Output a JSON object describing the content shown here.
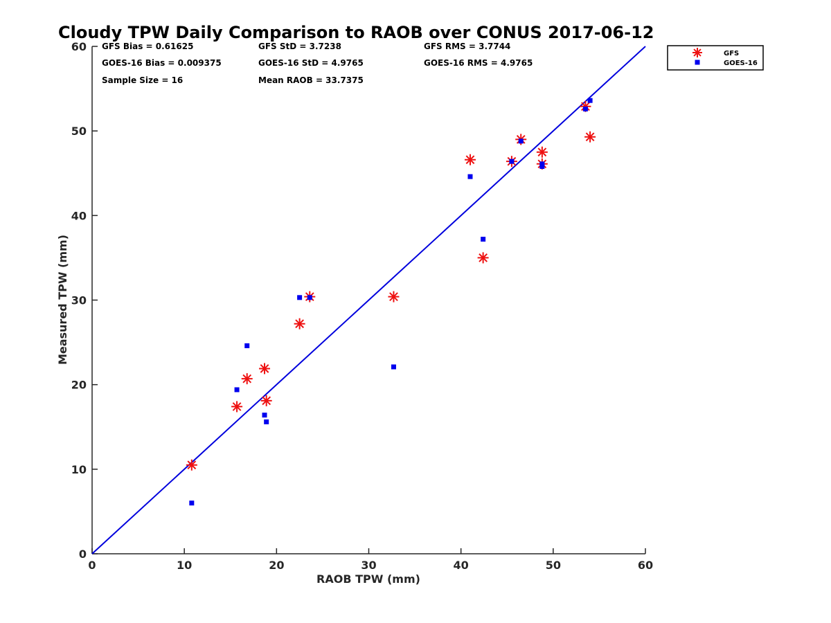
{
  "chart_data": {
    "type": "scatter",
    "title": "Cloudy TPW Daily Comparison to RAOB over CONUS 2017-06-12",
    "xlabel": "RAOB TPW (mm)",
    "ylabel": "Measured TPW (mm)",
    "xlim": [
      0,
      60
    ],
    "ylim": [
      0,
      60
    ],
    "xticks": [
      "0",
      "10",
      "20",
      "30",
      "40",
      "50",
      "60"
    ],
    "yticks": [
      "0",
      "10",
      "20",
      "30",
      "40",
      "50",
      "60"
    ],
    "grid": false,
    "legend_position": "top-right outside",
    "reference_line": {
      "x": [
        0,
        60
      ],
      "y": [
        0,
        60
      ],
      "color": "#0000dd"
    },
    "stats": [
      [
        "GFS Bias = 0.61625",
        "GFS StD = 3.7238",
        "GFS RMS = 3.7744"
      ],
      [
        "GOES-16 Bias = 0.009375",
        "GOES-16 StD = 4.9765",
        "GOES-16 RMS = 4.9765"
      ],
      [
        "Sample Size = 16",
        "Mean RAOB = 33.7375",
        ""
      ]
    ],
    "series": [
      {
        "name": "GFS",
        "marker": "asterisk",
        "color": "#ee1111",
        "x": [
          10.8,
          15.7,
          16.8,
          18.7,
          18.9,
          22.5,
          23.6,
          32.7,
          41.0,
          42.4,
          45.5,
          46.5,
          48.8,
          48.8,
          53.5,
          54.0
        ],
        "y": [
          10.5,
          17.4,
          20.7,
          21.9,
          18.1,
          27.2,
          30.4,
          30.4,
          46.6,
          35.0,
          46.4,
          49.0,
          47.5,
          46.1,
          52.9,
          49.3
        ]
      },
      {
        "name": "GOES-16",
        "marker": "square",
        "color": "#0000ee",
        "x": [
          10.8,
          15.7,
          16.8,
          18.7,
          18.9,
          22.5,
          23.6,
          32.7,
          41.0,
          42.4,
          45.5,
          46.5,
          48.8,
          48.8,
          53.5,
          54.0
        ],
        "y": [
          6.0,
          19.4,
          24.6,
          16.4,
          15.6,
          30.3,
          30.3,
          22.1,
          44.6,
          37.2,
          46.4,
          48.8,
          46.1,
          45.8,
          52.6,
          53.6
        ]
      }
    ]
  }
}
